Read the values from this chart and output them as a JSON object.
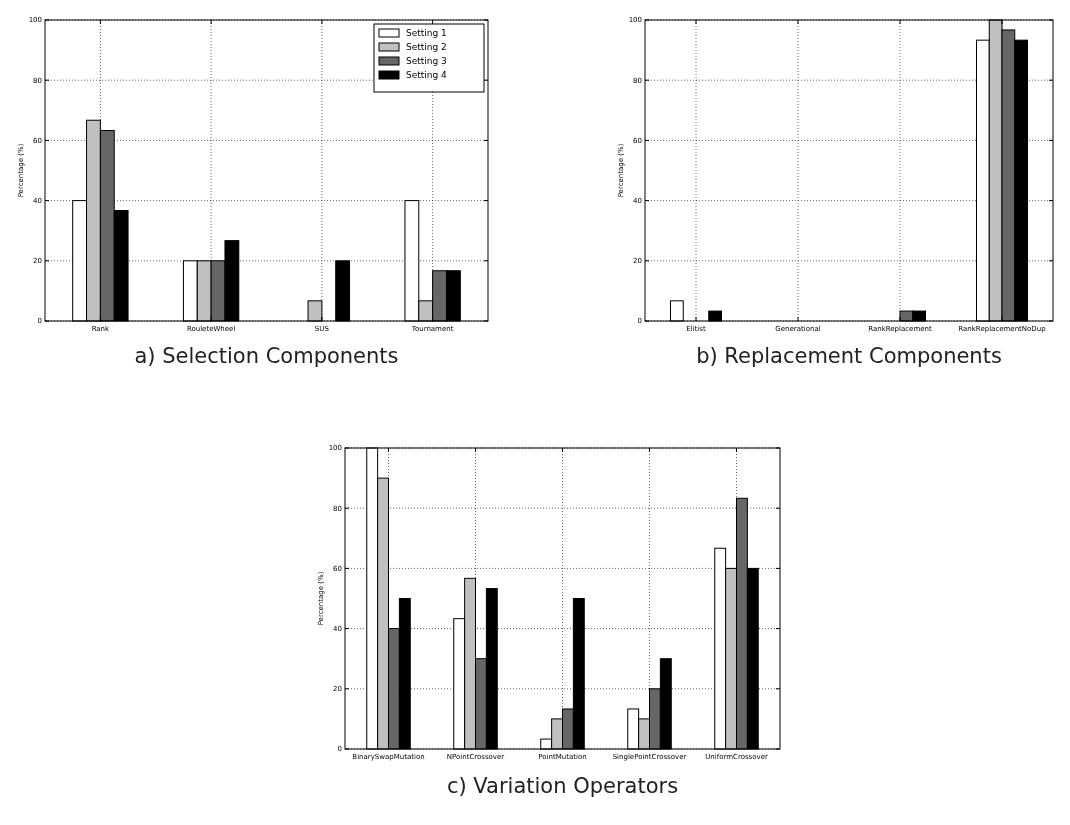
{
  "chart_data": [
    {
      "type": "bar",
      "title": "a) Selection Components",
      "ylabel": "Percentage (%)",
      "categories": [
        "Rank",
        "RouleteWheel",
        "SUS",
        "Tournament"
      ],
      "series": [
        {
          "name": "Setting 1",
          "color": "#ffffff",
          "values": [
            40,
            20,
            0,
            40
          ]
        },
        {
          "name": "Setting 2",
          "color": "#c0c0c0",
          "values": [
            66.7,
            20,
            6.7,
            6.7
          ]
        },
        {
          "name": "Setting 3",
          "color": "#666666",
          "values": [
            63.3,
            20,
            0,
            16.7
          ]
        },
        {
          "name": "Setting 4",
          "color": "#000000",
          "values": [
            36.7,
            26.7,
            20,
            16.7
          ]
        }
      ],
      "ylim": [
        0,
        100
      ],
      "yticks": [
        0,
        20,
        40,
        60,
        80,
        100
      ],
      "grid": true,
      "legend": "top right"
    },
    {
      "type": "bar",
      "title": "b) Replacement Components",
      "ylabel": "Percentage (%)",
      "categories": [
        "Elitist",
        "Generational",
        "RankReplacement",
        "RankReplacementNoDup"
      ],
      "series": [
        {
          "color": "#ffffff",
          "values": [
            6.7,
            0,
            0,
            93.3
          ]
        },
        {
          "color": "#c0c0c0",
          "values": [
            0,
            0,
            0,
            100
          ]
        },
        {
          "color": "#666666",
          "values": [
            0,
            0,
            3.3,
            96.7
          ]
        },
        {
          "color": "#000000",
          "values": [
            3.3,
            0,
            3.3,
            93.3
          ]
        }
      ],
      "ylim": [
        0,
        100
      ],
      "yticks": [
        0,
        20,
        40,
        60,
        80,
        100
      ],
      "grid": true
    },
    {
      "type": "bar",
      "title": "c) Variation Operators",
      "ylabel": "Percentage (%)",
      "categories": [
        "BinarySwapMutation",
        "NPointCrossover",
        "PointMutation",
        "SinglePointCrossover",
        "UniformCrossover"
      ],
      "series": [
        {
          "color": "#ffffff",
          "values": [
            100,
            43.3,
            3.3,
            13.3,
            66.7
          ]
        },
        {
          "color": "#c0c0c0",
          "values": [
            90,
            56.7,
            10,
            10,
            60
          ]
        },
        {
          "color": "#666666",
          "values": [
            40,
            30,
            13.3,
            20,
            83.3
          ]
        },
        {
          "color": "#000000",
          "values": [
            50,
            53.3,
            50,
            30,
            60
          ]
        }
      ],
      "ylim": [
        0,
        100
      ],
      "yticks": [
        0,
        20,
        40,
        60,
        80,
        100
      ],
      "grid": true
    }
  ]
}
